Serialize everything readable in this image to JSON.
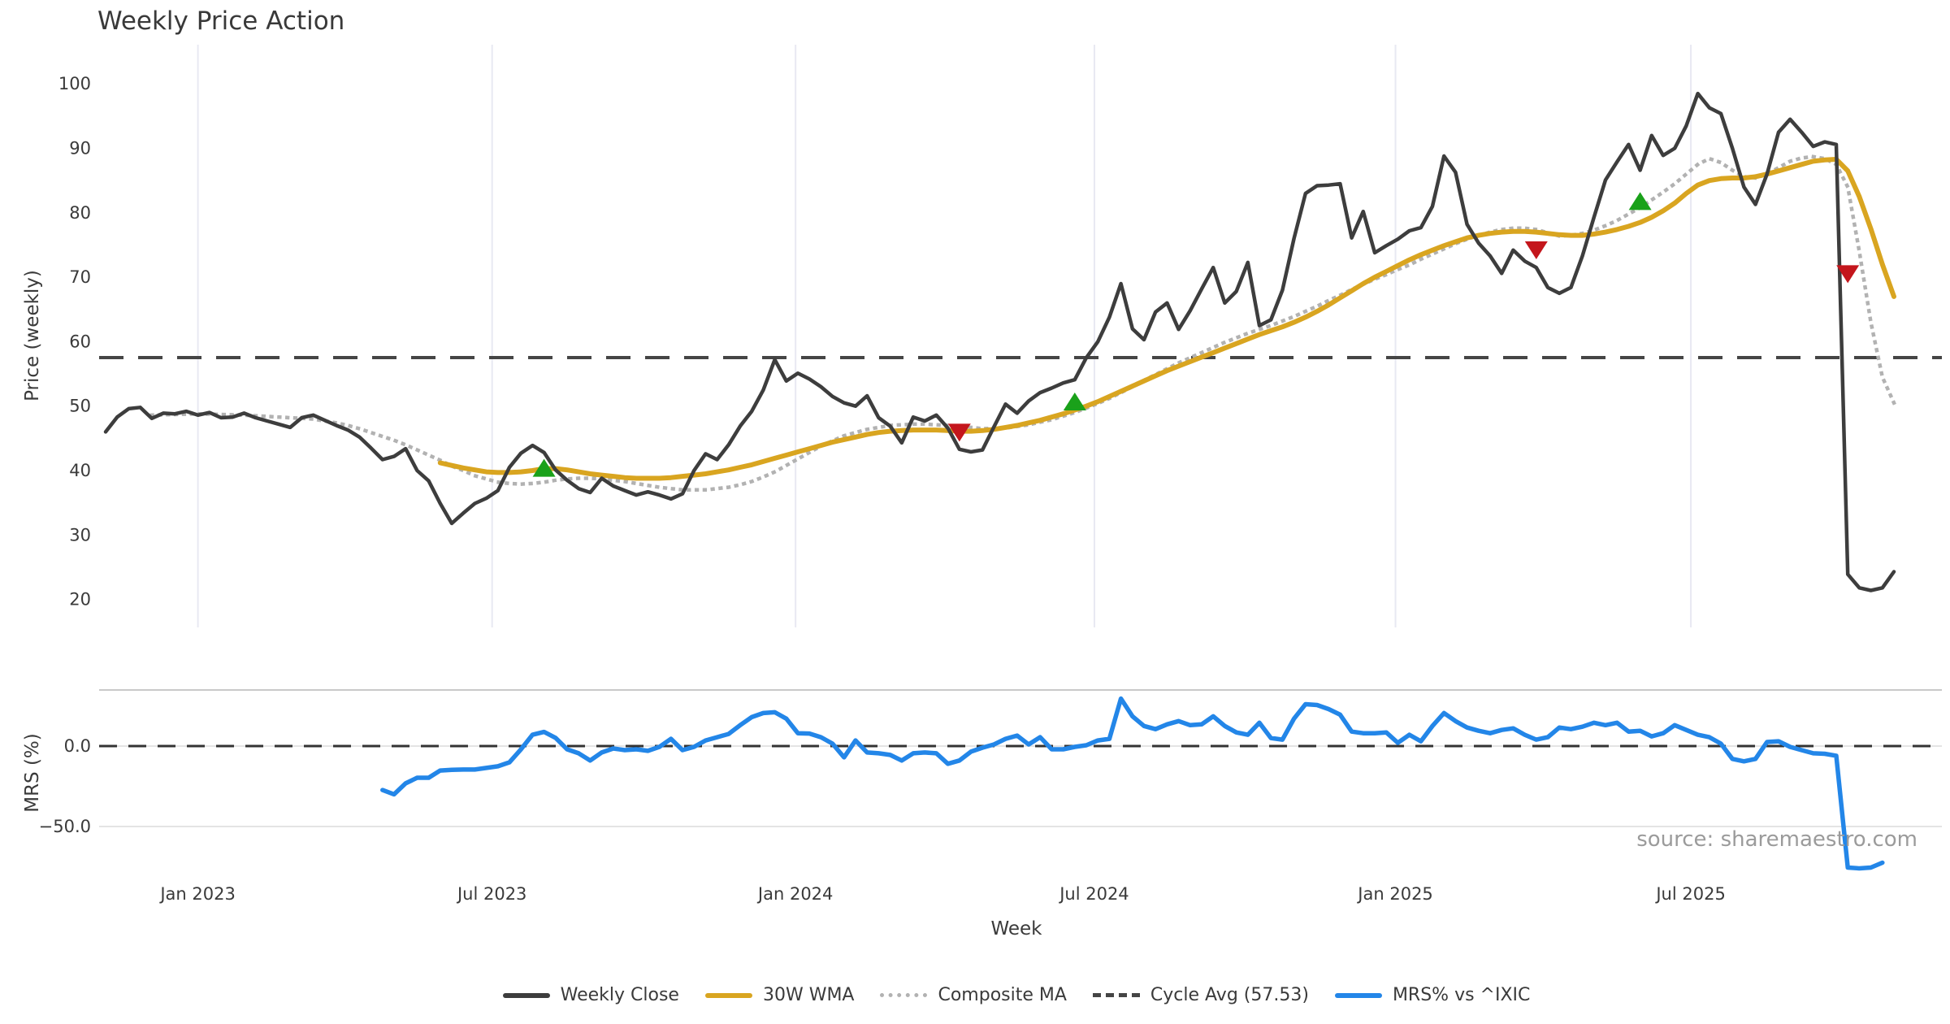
{
  "title": "Weekly Price Action",
  "xlabel": "Week",
  "source_note": "source: sharemaestro.com",
  "colors": {
    "close": "#3d3d3d",
    "wma": "#d9a520",
    "composite": "#b2b2b2",
    "cycle": "#454545",
    "mrs": "#2386e8",
    "buy": "#1aa11a",
    "sell": "#c4161c",
    "grid_vertical": "#e8e9f2",
    "grid_horizontal": "#e4e4e4",
    "spine": "#c9c9c9",
    "tick_text": "#3a3a3a"
  },
  "legend": [
    {
      "label": "Weekly Close",
      "style": "solid-dark"
    },
    {
      "label": "30W WMA",
      "style": "solid-gold"
    },
    {
      "label": "Composite MA",
      "style": "dotted-gray"
    },
    {
      "label": "Cycle Avg (57.53)",
      "style": "dashed-dark"
    },
    {
      "label": "MRS% vs ^IXIC",
      "style": "solid-blue"
    }
  ],
  "chart_data": [
    {
      "type": "line",
      "panel": "price",
      "ylabel": "Price (weekly)",
      "ylim": [
        15.5,
        105.5
      ],
      "yticks": [
        20,
        30,
        40,
        50,
        60,
        70,
        80,
        90,
        100
      ],
      "cycle_avg": 57.53,
      "grid": "vertical-only",
      "xticks": [
        {
          "week": 8.0,
          "label": "Jan 2023"
        },
        {
          "week": 33.5,
          "label": "Jul 2023"
        },
        {
          "week": 59.8,
          "label": "Jan 2024"
        },
        {
          "week": 85.7,
          "label": "Jul 2024"
        },
        {
          "week": 111.8,
          "label": "Jan 2025"
        },
        {
          "week": 137.4,
          "label": "Jul 2025"
        }
      ],
      "series": [
        {
          "name": "Composite MA",
          "color_key": "composite",
          "dash": "dotted",
          "width": 4.5,
          "start_week": 4,
          "values": [
            48.6,
            48.65,
            48.7,
            48.75,
            48.8,
            48.75,
            48.7,
            48.65,
            48.6,
            48.5,
            48.4,
            48.3,
            48.2,
            48.1,
            48.0,
            47.7,
            47.4,
            47.0,
            46.5,
            45.9,
            45.3,
            44.7,
            44.0,
            43.2,
            42.4,
            41.6,
            40.7,
            40.0,
            39.2,
            38.7,
            38.2,
            38.0,
            37.9,
            38.0,
            38.2,
            38.5,
            38.7,
            38.8,
            38.8,
            38.7,
            38.5,
            38.3,
            38.0,
            37.7,
            37.4,
            37.2,
            37.0,
            37.0,
            37.0,
            37.2,
            37.4,
            37.8,
            38.3,
            39.0,
            39.8,
            40.8,
            41.8,
            42.8,
            43.8,
            44.6,
            45.4,
            45.9,
            46.4,
            46.7,
            47.0,
            47.1,
            47.2,
            47.2,
            47.1,
            47.0,
            46.8,
            46.7,
            46.5,
            46.55,
            46.6,
            46.85,
            47.1,
            47.5,
            47.9,
            48.45,
            49.0,
            49.7,
            50.4,
            51.2,
            52.1,
            53.0,
            54.0,
            54.9,
            55.8,
            56.7,
            57.5,
            58.3,
            59.1,
            59.9,
            60.6,
            61.3,
            61.9,
            62.5,
            63.2,
            63.9,
            64.7,
            65.5,
            66.4,
            67.2,
            68.1,
            68.9,
            69.7,
            70.4,
            71.2,
            71.9,
            72.8,
            73.6,
            74.4,
            75.2,
            75.9,
            76.5,
            77.0,
            77.4,
            77.6,
            77.6,
            77.4,
            76.9,
            76.4,
            76.5,
            76.8,
            77.3,
            78.0,
            78.8,
            79.8,
            80.8,
            82.0,
            83.2,
            84.5,
            86.0,
            87.5,
            88.4,
            87.8,
            86.6,
            85.6,
            85.4,
            86.0,
            87.0,
            88.0,
            88.5,
            88.7,
            88.4,
            87.5,
            84.0,
            74.0,
            63.0,
            54.5,
            50.5
          ]
        },
        {
          "name": "30W WMA",
          "color_key": "wma",
          "dash": "solid",
          "width": 6,
          "start_week": 29,
          "values": [
            41.2,
            40.8,
            40.4,
            40.1,
            39.8,
            39.7,
            39.7,
            39.8,
            40.0,
            40.3,
            40.3,
            40.1,
            39.8,
            39.5,
            39.3,
            39.1,
            38.9,
            38.8,
            38.8,
            38.8,
            38.9,
            39.1,
            39.3,
            39.5,
            39.8,
            40.1,
            40.5,
            40.9,
            41.4,
            41.9,
            42.4,
            42.9,
            43.4,
            43.9,
            44.4,
            44.8,
            45.2,
            45.6,
            45.9,
            46.1,
            46.2,
            46.3,
            46.3,
            46.3,
            46.2,
            46.1,
            46.1,
            46.2,
            46.4,
            46.7,
            47.0,
            47.4,
            47.8,
            48.3,
            48.8,
            49.4,
            50.0,
            50.7,
            51.5,
            52.3,
            53.1,
            53.9,
            54.7,
            55.5,
            56.2,
            56.9,
            57.6,
            58.3,
            59.0,
            59.7,
            60.4,
            61.1,
            61.7,
            62.3,
            63.0,
            63.8,
            64.7,
            65.7,
            66.8,
            67.9,
            69.0,
            70.0,
            70.9,
            71.8,
            72.7,
            73.5,
            74.2,
            74.9,
            75.5,
            76.1,
            76.5,
            76.8,
            77.0,
            77.1,
            77.1,
            77.0,
            76.8,
            76.6,
            76.5,
            76.5,
            76.7,
            77.0,
            77.4,
            77.9,
            78.5,
            79.3,
            80.3,
            81.5,
            83.0,
            84.3,
            85.0,
            85.3,
            85.4,
            85.4,
            85.6,
            86.0,
            86.5,
            87.0,
            87.5,
            88.0,
            88.2,
            88.3,
            86.5,
            82.5,
            77.5,
            72.0,
            67.0
          ]
        },
        {
          "name": "Weekly Close",
          "color_key": "close",
          "dash": "solid",
          "width": 4.5,
          "start_week": 0,
          "values": [
            46.0,
            48.3,
            49.6,
            49.8,
            48.1,
            48.9,
            48.8,
            49.2,
            48.6,
            49.0,
            48.2,
            48.3,
            48.9,
            48.2,
            47.7,
            47.2,
            46.7,
            48.2,
            48.6,
            47.8,
            47.0,
            46.3,
            45.2,
            43.5,
            41.7,
            42.2,
            43.4,
            40.0,
            38.4,
            34.9,
            31.8,
            33.4,
            34.9,
            35.7,
            36.9,
            40.5,
            42.7,
            43.9,
            42.8,
            40.1,
            38.5,
            37.2,
            36.6,
            38.8,
            37.6,
            36.9,
            36.2,
            36.7,
            36.2,
            35.6,
            36.4,
            40.0,
            42.6,
            41.7,
            44.0,
            46.9,
            49.2,
            52.5,
            57.2,
            53.9,
            55.1,
            54.2,
            53.0,
            51.5,
            50.5,
            50.0,
            51.6,
            48.2,
            46.9,
            44.3,
            48.3,
            47.7,
            48.6,
            46.6,
            43.3,
            42.9,
            43.2,
            46.8,
            50.3,
            48.9,
            50.8,
            52.1,
            52.8,
            53.6,
            54.1,
            57.5,
            60.0,
            63.8,
            69.0,
            62.0,
            60.3,
            64.6,
            66.0,
            61.9,
            64.8,
            68.2,
            71.5,
            66.0,
            67.8,
            72.3,
            62.5,
            63.4,
            68.0,
            76.0,
            83.0,
            84.2,
            84.3,
            84.5,
            76.1,
            80.2,
            73.8,
            74.9,
            75.9,
            77.2,
            77.7,
            81.0,
            88.8,
            86.3,
            78.2,
            75.3,
            73.3,
            70.6,
            74.2,
            72.5,
            71.5,
            68.4,
            67.5,
            68.4,
            73.3,
            79.3,
            85.1,
            87.9,
            90.6,
            86.6,
            92.0,
            88.9,
            90.0,
            93.5,
            98.5,
            96.3,
            95.4,
            90.0,
            84.0,
            81.3,
            86.0,
            92.5,
            94.5,
            92.5,
            90.3,
            91.0,
            90.6,
            23.9,
            21.8,
            21.4,
            21.8,
            24.3
          ]
        }
      ],
      "markers": [
        {
          "week": 38,
          "value": 40.3,
          "type": "buy"
        },
        {
          "week": 74,
          "value": 46.0,
          "type": "sell"
        },
        {
          "week": 84,
          "value": 50.6,
          "type": "buy"
        },
        {
          "week": 124,
          "value": 74.3,
          "type": "sell"
        },
        {
          "week": 133,
          "value": 81.7,
          "type": "buy"
        },
        {
          "week": 151,
          "value": 70.6,
          "type": "sell"
        }
      ]
    },
    {
      "type": "line",
      "panel": "mrs",
      "ylabel": "MRS (%)",
      "ylim": [
        -79,
        35
      ],
      "yticks": [
        {
          "value": 0,
          "label": "0.0"
        },
        {
          "value": -50,
          "label": "−50.0"
        }
      ],
      "zero_line_dashed": true,
      "series": [
        {
          "name": "MRS% vs ^IXIC",
          "color_key": "mrs",
          "dash": "solid",
          "width": 5.5,
          "start_week": 24,
          "values": [
            -27.3,
            -30.0,
            -23.2,
            -19.7,
            -19.7,
            -15.2,
            -14.8,
            -14.6,
            -14.6,
            -13.6,
            -12.6,
            -10.1,
            -2.0,
            7.0,
            8.8,
            5.1,
            -2.0,
            -4.5,
            -9.0,
            -4.0,
            -1.5,
            -2.5,
            -2.0,
            -3.0,
            -0.5,
            4.5,
            -2.5,
            -0.5,
            3.5,
            5.5,
            7.5,
            13.0,
            18.0,
            20.5,
            21.0,
            17.0,
            8.0,
            7.8,
            5.5,
            1.5,
            -7.0,
            3.5,
            -4.0,
            -4.5,
            -5.5,
            -9.0,
            -4.5,
            -4.0,
            -4.5,
            -11.0,
            -9.0,
            -3.5,
            -1.0,
            1.0,
            4.5,
            6.5,
            1.0,
            5.5,
            -2.0,
            -2.0,
            -0.5,
            0.5,
            3.5,
            4.5,
            29.5,
            18.5,
            12.5,
            10.5,
            13.5,
            15.5,
            13.0,
            13.5,
            18.5,
            12.5,
            8.5,
            7.0,
            14.5,
            5.0,
            4.0,
            17.0,
            26.0,
            25.5,
            23.0,
            19.5,
            9.0,
            8.0,
            8.0,
            8.5,
            2.0,
            7.0,
            3.0,
            12.5,
            20.5,
            15.5,
            11.5,
            9.5,
            8.0,
            10.0,
            11.0,
            7.0,
            4.0,
            5.5,
            11.5,
            10.5,
            12.0,
            14.5,
            13.0,
            14.5,
            9.0,
            9.5,
            6.0,
            8.0,
            13.0,
            10.0,
            7.0,
            5.5,
            1.5,
            -8.0,
            -9.5,
            -8.0,
            2.5,
            3.0,
            -0.5,
            -2.5,
            -4.5,
            -4.8,
            -6.0,
            -75.5,
            -76.0,
            -75.5,
            -72.5
          ]
        }
      ]
    }
  ]
}
